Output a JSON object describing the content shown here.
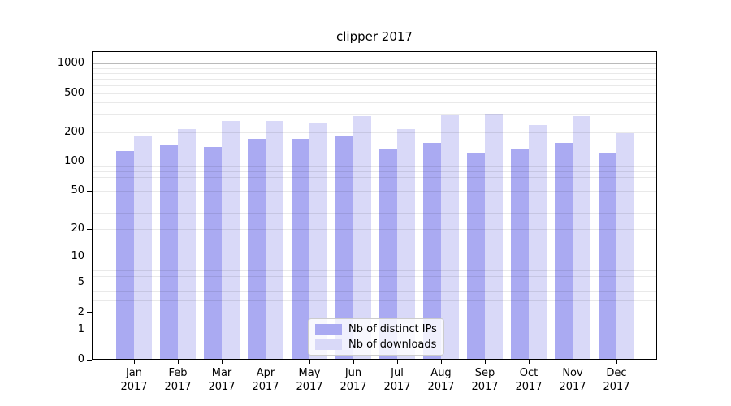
{
  "title": "clipper 2017",
  "chart_data": {
    "type": "bar",
    "title": "clipper 2017",
    "categories": [
      "Jan 2017",
      "Feb 2017",
      "Mar 2017",
      "Apr 2017",
      "May 2017",
      "Jun 2017",
      "Jul 2017",
      "Aug 2017",
      "Sep 2017",
      "Oct 2017",
      "Nov 2017",
      "Dec 2017"
    ],
    "series": [
      {
        "name": "Nb of distinct IPs",
        "color": "#aaaaf2",
        "values": [
          129,
          146,
          142,
          172,
          172,
          185,
          137,
          155,
          121,
          133,
          156,
          121
        ]
      },
      {
        "name": "Nb of downloads",
        "color": "#d9d9f8",
        "values": [
          185,
          217,
          260,
          258,
          244,
          292,
          215,
          298,
          300,
          235,
          289,
          195
        ]
      }
    ],
    "y_axis": {
      "scale": "log10(1+x)",
      "tick_values": [
        0,
        1,
        2,
        5,
        10,
        20,
        50,
        100,
        200,
        500,
        1000
      ],
      "range": [
        0,
        1330
      ],
      "grid": true
    },
    "xlabel": "",
    "ylabel": "",
    "legend_position": "lower center"
  }
}
